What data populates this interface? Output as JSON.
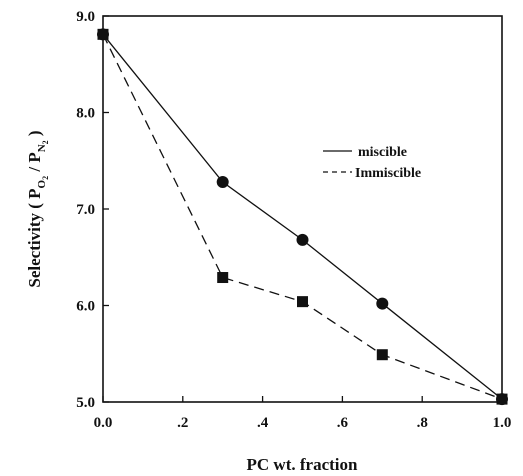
{
  "chart_data": {
    "type": "line",
    "xlabel": "PC wt. fraction",
    "ylabel": "Selectivity ( P / P )",
    "ylabel_parts": {
      "prefix": "Selectivity ( P",
      "sub1_main": "O",
      "sub1_sub": "2",
      "mid": " / P",
      "sub2_main": "N",
      "sub2_sub": "2",
      "suffix": " )"
    },
    "xlim": [
      0,
      1
    ],
    "ylim": [
      5,
      9
    ],
    "x_ticks": [
      0,
      0.2,
      0.4,
      0.6,
      0.8,
      1.0
    ],
    "x_tick_labels": [
      "0.0",
      ".2",
      ".4",
      ".6",
      ".8",
      "1.0"
    ],
    "y_ticks": [
      5,
      6,
      7,
      8,
      9
    ],
    "y_tick_labels": [
      "5.0",
      "6.0",
      "7.0",
      "8.0",
      "9.0"
    ],
    "grid": false,
    "legend_position": "top-right",
    "series": [
      {
        "name": "miscible",
        "line_style": "solid",
        "marker": "circle",
        "x": [
          0,
          0.3,
          0.5,
          0.7,
          1.0
        ],
        "y": [
          8.81,
          7.28,
          6.68,
          6.02,
          5.03
        ]
      },
      {
        "name": "Immiscible",
        "line_style": "dashed",
        "marker": "square",
        "x": [
          0,
          0.3,
          0.5,
          0.7,
          1.0
        ],
        "y": [
          8.81,
          6.29,
          6.04,
          5.49,
          5.03
        ]
      }
    ],
    "legend_labels": [
      "miscible",
      "Immiscible"
    ]
  }
}
